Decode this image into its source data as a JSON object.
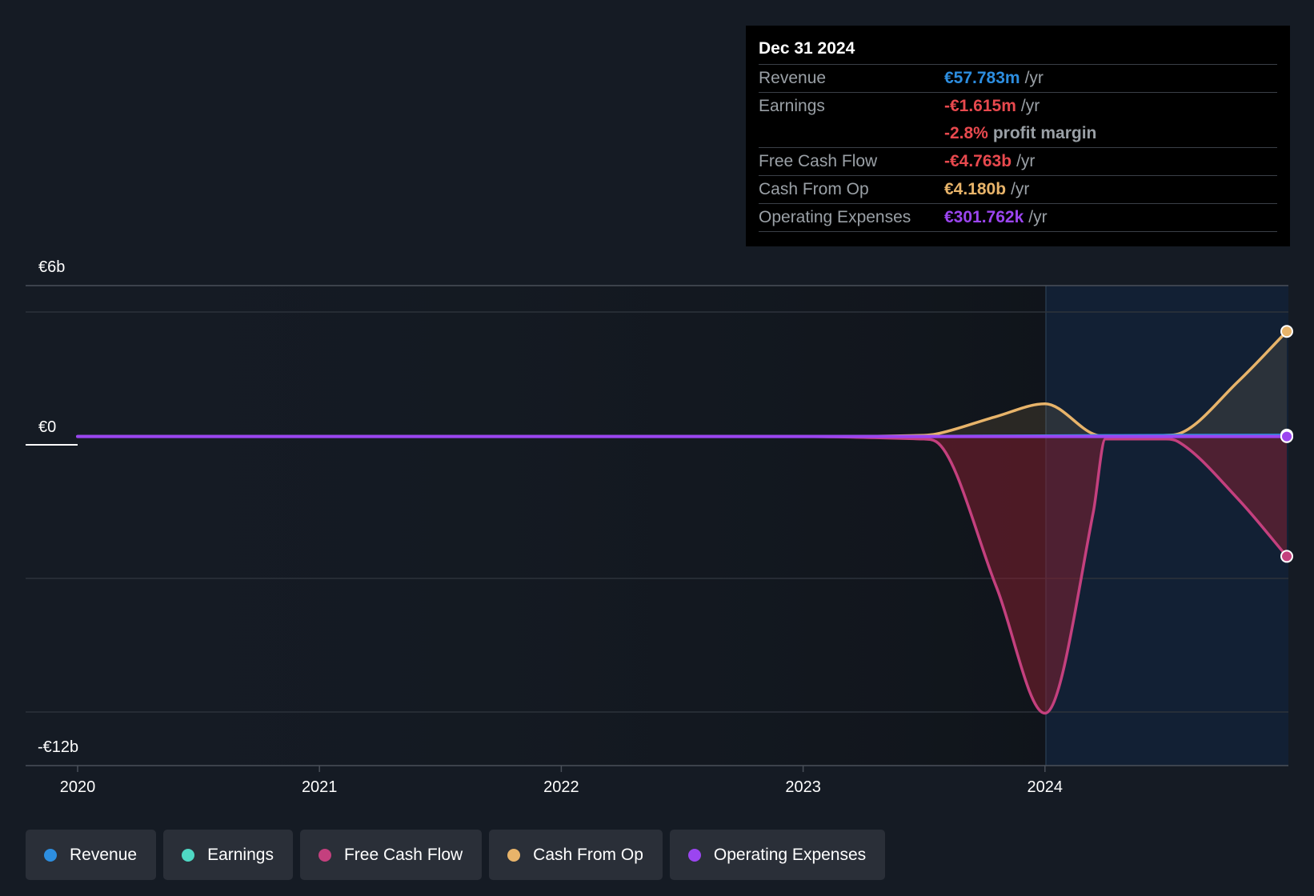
{
  "chart_data": {
    "type": "area",
    "x_ticks": [
      "2020",
      "2021",
      "2022",
      "2023",
      "2024"
    ],
    "y_tick_labels": {
      "top": "€6b",
      "zero": "€0",
      "bottom": "-€12b"
    },
    "ylim": [
      -12,
      6
    ],
    "y_unit": "€b",
    "grid": true,
    "highlighted_period": {
      "from": "2024",
      "to": "Dec 31 2024"
    },
    "series": [
      {
        "name": "Revenue",
        "color": "#2d8ee0",
        "x": [
          2020.0,
          2021.0,
          2022.0,
          2023.0,
          2023.5,
          2024.0,
          2024.5,
          2025.0
        ],
        "y": [
          0.0,
          0.0,
          0.0,
          0.0,
          0.01,
          0.03,
          0.05,
          0.058
        ]
      },
      {
        "name": "Earnings",
        "color": "#4fd8c4",
        "x": [
          2020.0,
          2021.0,
          2022.0,
          2023.0,
          2023.5,
          2024.0,
          2024.5,
          2025.0
        ],
        "y": [
          0.0,
          0.0,
          0.0,
          0.0,
          0.0,
          0.0,
          0.0,
          -0.002
        ]
      },
      {
        "name": "Free Cash Flow",
        "color": "#c4407e",
        "x": [
          2020.0,
          2021.0,
          2022.0,
          2023.0,
          2023.5,
          2023.55,
          2023.8,
          2024.0,
          2024.2,
          2024.25,
          2024.5,
          2024.55,
          2024.8,
          2025.0
        ],
        "y": [
          0.0,
          0.0,
          0.0,
          0.0,
          -0.1,
          -0.2,
          -6.0,
          -11.0,
          -3.0,
          -0.1,
          -0.1,
          -0.2,
          -2.5,
          -4.763
        ]
      },
      {
        "name": "Cash From Op",
        "color": "#e8b46a",
        "x": [
          2020.0,
          2021.0,
          2022.0,
          2023.0,
          2023.5,
          2023.55,
          2023.8,
          2024.0,
          2024.2,
          2024.25,
          2024.5,
          2024.55,
          2024.8,
          2025.0
        ],
        "y": [
          0.0,
          0.0,
          0.0,
          0.0,
          0.05,
          0.1,
          0.8,
          1.3,
          0.1,
          0.0,
          0.05,
          0.1,
          2.2,
          4.18
        ]
      },
      {
        "name": "Operating Expenses",
        "color": "#9b45f0",
        "x": [
          2020.0,
          2021.0,
          2022.0,
          2023.0,
          2023.5,
          2024.0,
          2024.5,
          2025.0
        ],
        "y": [
          0.0,
          0.0,
          0.0,
          0.0,
          0.0,
          0.0,
          0.0,
          0.0003
        ]
      }
    ]
  },
  "tooltip": {
    "date": "Dec 31 2024",
    "revenue": {
      "label": "Revenue",
      "value": "€57.783m",
      "unit": "/yr"
    },
    "earnings": {
      "label": "Earnings",
      "value": "-€1.615m",
      "unit": "/yr"
    },
    "margin": {
      "value": "-2.8%",
      "unit": "profit margin"
    },
    "fcf": {
      "label": "Free Cash Flow",
      "value": "-€4.763b",
      "unit": "/yr"
    },
    "cfo": {
      "label": "Cash From Op",
      "value": "€4.180b",
      "unit": "/yr"
    },
    "opex": {
      "label": "Operating Expenses",
      "value": "€301.762k",
      "unit": "/yr"
    }
  },
  "legend": [
    {
      "label": "Revenue",
      "color": "#2d8ee0"
    },
    {
      "label": "Earnings",
      "color": "#4fd8c4"
    },
    {
      "label": "Free Cash Flow",
      "color": "#c4407e"
    },
    {
      "label": "Cash From Op",
      "color": "#e8b46a"
    },
    {
      "label": "Operating Expenses",
      "color": "#9b45f0"
    }
  ],
  "colors": {
    "negative": "#e8494e",
    "revenue": "#2d8ee0",
    "cfo": "#e8b46a",
    "opex": "#9b45f0"
  }
}
